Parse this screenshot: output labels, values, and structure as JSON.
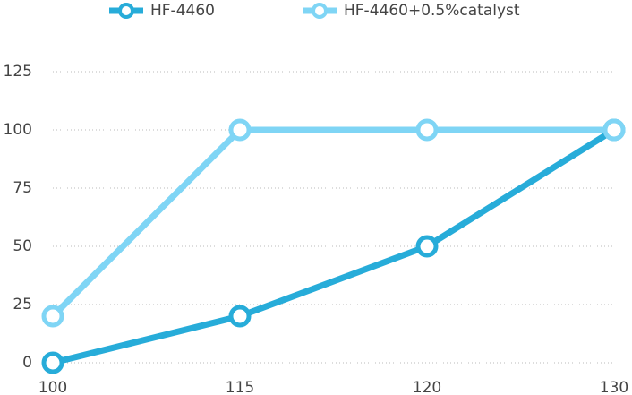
{
  "chart_data": {
    "type": "line",
    "categories": [
      "100",
      "115",
      "120",
      "130"
    ],
    "series": [
      {
        "name": "HF-4460",
        "color": "#27acd9",
        "values": [
          0,
          20,
          50,
          100
        ]
      },
      {
        "name": "HF-4460+0.5%catalyst",
        "color": "#7fd5f5",
        "values": [
          20,
          100,
          100,
          100
        ]
      }
    ],
    "ylim": [
      0,
      125
    ],
    "yticks": [
      0,
      25,
      50,
      75,
      100,
      125
    ],
    "grid": true,
    "legend": "top"
  }
}
